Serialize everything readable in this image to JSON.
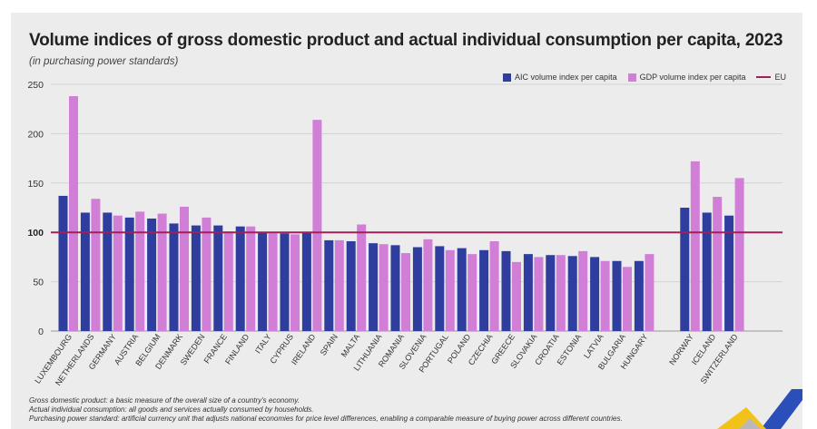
{
  "chart_data": {
    "type": "bar",
    "title": "Volume indices of gross domestic product and actual individual consumption per capita, 2023",
    "subtitle": "(in purchasing power standards)",
    "ylim": [
      0,
      250
    ],
    "yticks": [
      0,
      50,
      100,
      150,
      200,
      250
    ],
    "reference_line": {
      "name": "EU",
      "value": 100,
      "color": "#a0205a"
    },
    "categories": [
      "Luxembourg",
      "Netherlands",
      "Germany",
      "Austria",
      "Belgium",
      "Denmark",
      "Sweden",
      "France",
      "Finland",
      "Italy",
      "Cyprus",
      "Ireland",
      "Spain",
      "Malta",
      "Lithuania",
      "Romania",
      "Slovenia",
      "Portugal",
      "Poland",
      "Czechia",
      "Greece",
      "Slovakia",
      "Croatia",
      "Estonia",
      "Latvia",
      "Bulgaria",
      "Hungary",
      "Norway",
      "Iceland",
      "Switzerland"
    ],
    "tick_labels": [
      "LUXEMBOURG",
      "NETHERLANDS",
      "GERMANY",
      "AUSTRIA",
      "BELGIUM",
      "DENMARK",
      "SWEDEN",
      "FRANCE",
      "FINLAND",
      "ITALY",
      "CYPRUS",
      "IRELAND",
      "SPAIN",
      "MALTA",
      "LITHUANIA",
      "ROMANIA",
      "SLOVENIA",
      "PORTUGAL",
      "POLAND",
      "CZECHIA",
      "GREECE",
      "SLOVAKIA",
      "CROATIA",
      "ESTONIA",
      "LATVIA",
      "BULGARIA",
      "HUNGARY",
      "NORWAY",
      "ICELAND",
      "SWITZERLAND"
    ],
    "series": [
      {
        "name": "AIC volume index per capita",
        "color": "#2e3d9e",
        "values": [
          137,
          120,
          120,
          115,
          114,
          109,
          107,
          107,
          106,
          100,
          99,
          100,
          92,
          91,
          89,
          87,
          85,
          86,
          84,
          82,
          81,
          78,
          77,
          76,
          75,
          71,
          71,
          125,
          120,
          117
        ]
      },
      {
        "name": "GDP volume index per capita",
        "color": "#d17fd6",
        "values": [
          238,
          134,
          117,
          121,
          119,
          126,
          115,
          101,
          106,
          99,
          98,
          214,
          92,
          108,
          88,
          79,
          93,
          82,
          78,
          91,
          70,
          75,
          77,
          81,
          71,
          65,
          78,
          172,
          136,
          155
        ]
      }
    ]
  },
  "footnotes": [
    "Gross domestic product: a basic measure of the overall size of a country's economy.",
    "Actual individual consumption: all goods and services actually consumed by households.",
    "Purchasing power standard: artificial currency unit that adjusts national economies for price level differences, enabling a comparable measure of buying power across different countries."
  ]
}
